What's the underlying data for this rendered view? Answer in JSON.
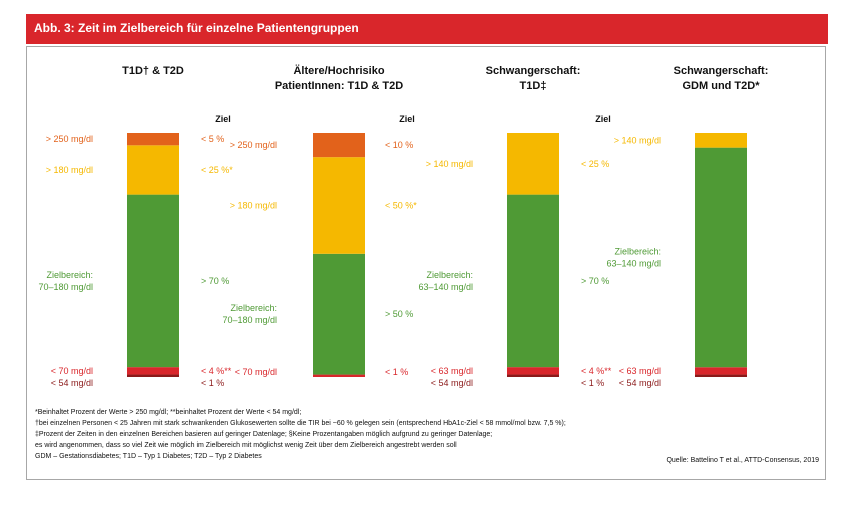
{
  "header": {
    "title": "Abb. 3: Zeit im Zielbereich für einzelne Patientengruppen"
  },
  "colors": {
    "dark_red": "#8b1a1a",
    "red": "#d9262b",
    "green": "#4f9a35",
    "yellow": "#f5b800",
    "orange": "#e2621b",
    "text": "#111111",
    "header": "#d9262b"
  },
  "chart_data": {
    "type": "bar",
    "stacked": true,
    "goal_header": "Ziel",
    "groups": [
      {
        "title_lines": [
          "T1D† & T2D"
        ],
        "show_goal_header": true,
        "segments": [
          {
            "range": "< 54 mg/dl",
            "goal": "< 1 %",
            "value": 1,
            "color": "#8b1a1a"
          },
          {
            "range": "< 70 mg/dl",
            "goal": "< 4 %**",
            "value": 3,
            "color": "#d9262b"
          },
          {
            "range_lines": [
              "Zielbereich:",
              "70–180 mg/dl"
            ],
            "goal": "> 70 %",
            "value": 70,
            "color": "#4f9a35"
          },
          {
            "range": "> 180 mg/dl",
            "goal": "< 25 %*",
            "value": 20,
            "color": "#f5b800"
          },
          {
            "range": "> 250 mg/dl",
            "goal": "< 5 %",
            "value": 5,
            "color": "#e2621b"
          }
        ]
      },
      {
        "title_lines": [
          "Ältere/Hochrisiko",
          "PatientInnen: T1D & T2D"
        ],
        "show_goal_header": true,
        "segments": [
          {
            "range": "< 70 mg/dl",
            "goal": "< 1 %",
            "value": 1,
            "color": "#d9262b"
          },
          {
            "range_lines": [
              "Zielbereich:",
              "70–180 mg/dl"
            ],
            "goal": "> 50 %",
            "value": 50,
            "color": "#4f9a35"
          },
          {
            "range": "> 180 mg/dl",
            "goal": "< 50 %*",
            "value": 40,
            "color": "#f5b800"
          },
          {
            "range": "> 250 mg/dl",
            "goal": "< 10 %",
            "value": 10,
            "color": "#e2621b"
          }
        ]
      },
      {
        "title_lines": [
          "Schwangerschaft:",
          "T1D‡"
        ],
        "show_goal_header": true,
        "segments": [
          {
            "range": "< 54 mg/dl",
            "goal": "< 1 %",
            "value": 1,
            "color": "#8b1a1a"
          },
          {
            "range": "< 63 mg/dl",
            "goal": "< 4 %**",
            "value": 3,
            "color": "#d9262b"
          },
          {
            "range_lines": [
              "Zielbereich:",
              "63–140 mg/dl"
            ],
            "goal": "> 70 %",
            "value": 70,
            "color": "#4f9a35"
          },
          {
            "range": "> 140 mg/dl",
            "goal": "< 25 %",
            "value": 25,
            "color": "#f5b800"
          }
        ]
      },
      {
        "title_lines": [
          "Schwangerschaft:",
          "GDM und T2D*"
        ],
        "show_goal_header": false,
        "segments": [
          {
            "range": "< 54 mg/dl",
            "goal": "",
            "value": 1,
            "color": "#8b1a1a"
          },
          {
            "range": "< 63 mg/dl",
            "goal": "",
            "value": 3,
            "color": "#d9262b"
          },
          {
            "range_lines": [
              "Zielbereich:",
              "63–140 mg/dl"
            ],
            "goal": "",
            "value": 90,
            "color": "#4f9a35"
          },
          {
            "range": "> 140 mg/dl",
            "goal": "",
            "value": 6,
            "color": "#f5b800"
          }
        ]
      }
    ]
  },
  "footnotes": [
    "*Beinhaltet Prozent der Werte > 250 mg/dl; **beinhaltet Prozent der Werte < 54 mg/dl;",
    "†bei einzelnen Personen < 25 Jahren mit stark schwankenden Glukosewerten sollte die TIR bei ~60 % gelegen sein (entsprechend HbA1c-Ziel < 58 mmol/mol bzw. 7,5 %);",
    "‡Prozent der Zeiten in den einzelnen Bereichen basieren auf geringer Datenlage; §Keine Prozentangaben möglich aufgrund zu geringer Datenlage;",
    "es wird angenommen, dass so viel Zeit wie möglich im Zielbereich mit möglichst wenig Zeit über dem Zielbereich angestrebt werden soll",
    "GDM – Gestationsdiabetes; T1D – Typ 1 Diabetes; T2D – Typ 2 Diabetes"
  ],
  "source": "Quelle: Battelino T et al., ATTD-Consensus, 2019"
}
